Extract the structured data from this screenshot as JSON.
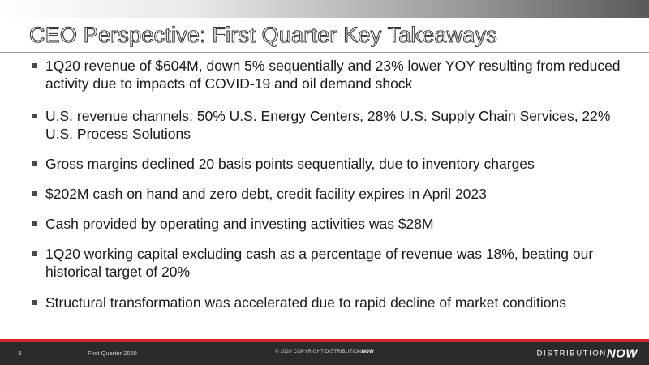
{
  "slide": {
    "title": "CEO Perspective: First Quarter Key Takeaways",
    "bullets": [
      "1Q20 revenue of $604M, down 5% sequentially and 23% lower YOY resulting from reduced activity due to impacts of COVID-19 and oil demand shock",
      "U.S. revenue channels: 50% U.S. Energy Centers, 28% U.S. Supply Chain Services, 22% U.S. Process Solutions",
      "Gross margins declined 20 basis points sequentially, due to inventory charges",
      "$202M cash on hand and zero debt, credit facility expires in April 2023",
      "Cash provided by operating and investing activities was $28M",
      "1Q20 working capital excluding cash as a percentage of revenue was 18%, beating our historical target of 20%",
      "Structural transformation was accelerated due to rapid decline of market conditions"
    ]
  },
  "footer": {
    "page_number": "3",
    "period": "First Quarter 2020",
    "copyright_prefix": "© 2020 COPYRIGHT DISTRIBUTION",
    "copyright_bold": "NOW",
    "logo_distribution": "DISTRIBUTION",
    "logo_now": "NOW"
  },
  "colors": {
    "accent_red": "#d22630",
    "footer_dark": "#2b2b2b",
    "text": "#1a1a1a"
  }
}
